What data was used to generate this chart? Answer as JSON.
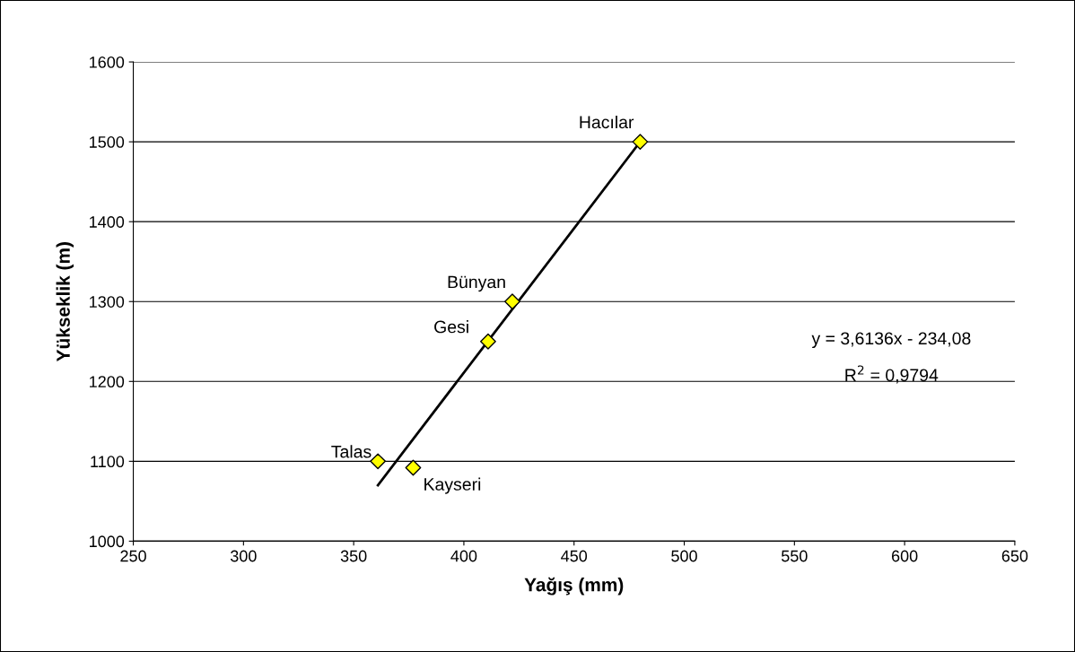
{
  "chart_data": {
    "type": "scatter",
    "xlabel": "Yağış (mm)",
    "ylabel": "Yükseklik (m)",
    "series": [
      {
        "color": "#ffff00",
        "x": [
          480,
          422,
          411,
          361,
          377
        ],
        "values": [
          1500,
          1300,
          1250,
          1100,
          1092
        ],
        "marker": "diamond"
      },
      {
        "type": "line",
        "color": "#000000",
        "x": [
          361,
          480
        ],
        "values": [
          1070,
          1500
        ],
        "marker": "none",
        "line_style": "solid"
      }
    ],
    "annotations": [
      {
        "text": "Hacılar",
        "x": 480,
        "y": 1500
      },
      {
        "text": "Bünyan",
        "x": 422,
        "y": 1300
      },
      {
        "text": "Gesi",
        "x": 411,
        "y": 1250
      },
      {
        "text": "Talas",
        "x": 361,
        "y": 1100
      },
      {
        "text": "Kayseri",
        "x": 377,
        "y": 1092
      },
      "y = 3,6136x - 234,08",
      "R$^{2}$ = 0,9794"
    ],
    "xlim": [
      250,
      650
    ],
    "xticks": [
      250,
      300,
      350,
      400,
      450,
      500,
      550,
      600,
      650
    ],
    "ylim": [
      1000,
      1600
    ],
    "yticks": [
      1000,
      1100,
      1200,
      1300,
      1400,
      1500,
      1600
    ],
    "grid": "y",
    "legend": false
  }
}
